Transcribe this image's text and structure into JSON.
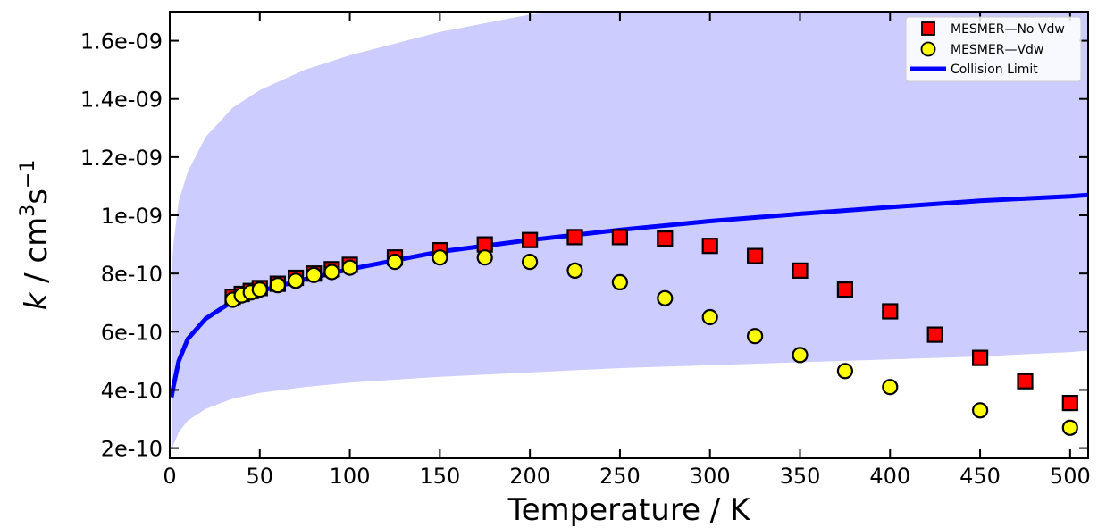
{
  "chart_data": {
    "type": "scatter",
    "title": "",
    "xlabel": "Temperature / K",
    "ylabel": {
      "k": "k",
      "unit_prefix": "/ cm",
      "exp1": "3",
      "unit_mid": "s",
      "exp2": "−1"
    },
    "xlim": [
      0,
      510
    ],
    "ylim": [
      1.65e-10,
      1.7e-09
    ],
    "x_ticks": [
      0,
      50,
      100,
      150,
      200,
      250,
      300,
      350,
      400,
      450,
      500
    ],
    "y_ticks": [
      2e-10,
      4e-10,
      6e-10,
      8e-10,
      1e-09,
      1.2e-09,
      1.4e-09,
      1.6e-09
    ],
    "x_tick_labels": [
      "0",
      "50",
      "100",
      "150",
      "200",
      "250",
      "300",
      "350",
      "400",
      "450",
      "500"
    ],
    "y_tick_labels": [
      "2e-10",
      "4e-10",
      "6e-10",
      "8e-10",
      "1e-09",
      "1.2e-09",
      "1.4e-09",
      "1.6e-09"
    ],
    "legend_position": "top-right",
    "colors": {
      "band": "#ccccff",
      "collision_line": "#0000ff",
      "novdw_marker": "#ff0000",
      "vdw_marker": "#ffff00"
    },
    "series": [
      {
        "name": "MESMER—No Vdw",
        "kind": "scatter",
        "marker": "square",
        "x": [
          35,
          40,
          45,
          50,
          60,
          70,
          80,
          90,
          100,
          125,
          150,
          175,
          200,
          225,
          250,
          275,
          300,
          325,
          350,
          375,
          400,
          425,
          450,
          475,
          500
        ],
        "y": [
          7.2e-10,
          7.3e-10,
          7.4e-10,
          7.5e-10,
          7.65e-10,
          7.85e-10,
          8e-10,
          8.15e-10,
          8.3e-10,
          8.55e-10,
          8.8e-10,
          9e-10,
          9.15e-10,
          9.25e-10,
          9.25e-10,
          9.2e-10,
          8.95e-10,
          8.6e-10,
          8.1e-10,
          7.45e-10,
          6.7e-10,
          5.9e-10,
          5.1e-10,
          4.3e-10,
          3.55e-10
        ]
      },
      {
        "name": "MESMER—Vdw",
        "kind": "scatter",
        "marker": "circle",
        "x": [
          35,
          40,
          45,
          50,
          60,
          70,
          80,
          90,
          100,
          125,
          150,
          175,
          200,
          225,
          250,
          275,
          300,
          325,
          350,
          375,
          400,
          450,
          500
        ],
        "y": [
          7.1e-10,
          7.25e-10,
          7.35e-10,
          7.45e-10,
          7.6e-10,
          7.75e-10,
          7.95e-10,
          8.05e-10,
          8.2e-10,
          8.4e-10,
          8.55e-10,
          8.55e-10,
          8.4e-10,
          8.1e-10,
          7.7e-10,
          7.15e-10,
          6.5e-10,
          5.85e-10,
          5.2e-10,
          4.65e-10,
          4.1e-10,
          3.3e-10,
          2.7e-10
        ]
      },
      {
        "name": "Collision Limit",
        "kind": "line",
        "x": [
          1,
          2,
          5,
          10,
          20,
          35,
          50,
          75,
          100,
          150,
          200,
          250,
          300,
          350,
          400,
          450,
          500,
          510
        ],
        "y": [
          3.75e-10,
          4.1e-10,
          5e-10,
          5.75e-10,
          6.45e-10,
          7.05e-10,
          7.4e-10,
          7.8e-10,
          8.15e-10,
          8.75e-10,
          9.15e-10,
          9.5e-10,
          9.8e-10,
          1.005e-09,
          1.028e-09,
          1.05e-09,
          1.065e-09,
          1.07e-09
        ]
      }
    ],
    "band": {
      "x": [
        1,
        2,
        5,
        10,
        20,
        35,
        50,
        75,
        100,
        150,
        200,
        250,
        300,
        350,
        400,
        450,
        500,
        510
      ],
      "upper": [
        8e-10,
        9e-10,
        1.05e-09,
        1.15e-09,
        1.27e-09,
        1.37e-09,
        1.43e-09,
        1.5e-09,
        1.55e-09,
        1.63e-09,
        1.69e-09,
        1.72e-09,
        1.75e-09,
        1.75e-09,
        1.75e-09,
        1.75e-09,
        1.75e-09,
        1.75e-09
      ],
      "lower": [
        1.8e-10,
        2.1e-10,
        2.55e-10,
        2.95e-10,
        3.35e-10,
        3.7e-10,
        3.9e-10,
        4.1e-10,
        4.25e-10,
        4.45e-10,
        4.6e-10,
        4.75e-10,
        4.85e-10,
        4.95e-10,
        5.05e-10,
        5.15e-10,
        5.3e-10,
        5.35e-10
      ]
    }
  }
}
